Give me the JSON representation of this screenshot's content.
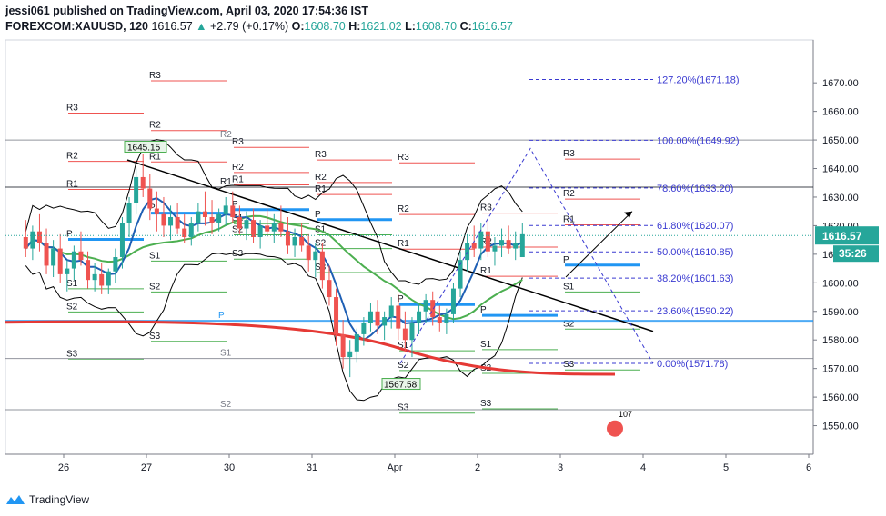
{
  "header": {
    "publisher_line": "jessi061 published on TradingView.com, April 03, 2020 17:54:36 IST",
    "symbol": "FOREXCOM:XAUUSD, 120",
    "last": "1616.57",
    "change_arrow": "▲",
    "change": "+2.79 (+0.17%)",
    "o_label": "O:",
    "o_value": "1608.70",
    "h_label": "H:",
    "h_value": "1621.02",
    "l_label": "L:",
    "l_value": "1608.70",
    "c_label": "C:",
    "c_value": "1616.57"
  },
  "footer": {
    "brand": "TradingView",
    "logo_icon": "tradingview-logo-icon"
  },
  "colors": {
    "up": "#26a69a",
    "down": "#ef5350",
    "pivot": "#2196f3",
    "resistance": "#ef5350",
    "support": "#4caf50",
    "ma_red": "#e53935",
    "ma_green": "#4caf50",
    "ma_blue": "#1e5fb4",
    "band": "#000000",
    "fib": "#3a3ad1",
    "price_tag": "#26a69a"
  },
  "chart_data": {
    "type": "candlestick",
    "symbol": "FOREXCOM:XAUUSD",
    "interval": "120",
    "ylim": [
      1540,
      1685
    ],
    "y_ticks": [
      1550,
      1560,
      1570,
      1580,
      1590,
      1600,
      1610,
      1620,
      1630,
      1640,
      1650,
      1660,
      1670
    ],
    "x_ticks": [
      "26",
      "27",
      "30",
      "31",
      "Apr",
      "2",
      "3",
      "4",
      "5",
      "6"
    ],
    "last_price": "1616.57",
    "countdown": "35:26",
    "annotations": {
      "high_label": "1645.15",
      "low_label": "1567.58",
      "event_badge": "107"
    },
    "fib_levels": [
      {
        "label": "127.20%(1671.18)",
        "price": 1671.18
      },
      {
        "label": "100.00%(1649.92)",
        "price": 1649.92
      },
      {
        "label": "78.60%(1633.20)",
        "price": 1633.2
      },
      {
        "label": "61.80%(1620.07)",
        "price": 1620.07
      },
      {
        "label": "50.00%(1610.85)",
        "price": 1610.85
      },
      {
        "label": "38.20%(1601.63)",
        "price": 1601.63
      },
      {
        "label": "23.60%(1590.22)",
        "price": 1590.22
      },
      {
        "label": "0.00%(1571.78)",
        "price": 1571.78
      }
    ],
    "pivot_sessions": [
      {
        "day": 0,
        "P": 1615.2,
        "R1": 1632.7,
        "R2": 1642.5,
        "R3": 1659.4,
        "S1": 1597.9,
        "S2": 1589.8,
        "S3": 1573.3
      },
      {
        "day": 1,
        "P": 1624.4,
        "R1": 1642.3,
        "R2": 1653.3,
        "R3": 1670.7,
        "S1": 1607.6,
        "S2": 1596.8,
        "S3": 1579.5
      },
      {
        "day": 2,
        "P": 1625.6,
        "R1": 1634.3,
        "R2": 1638.6,
        "R3": 1647.4,
        "S1": 1620.7,
        "S2": 1616.8,
        "S3": 1608.3
      },
      {
        "day": 3,
        "P": 1622.1,
        "R1": 1630.9,
        "R2": 1635.1,
        "R3": 1643.0,
        "S1": 1616.8,
        "S2": 1612.0,
        "S3": 1603.6
      },
      {
        "day": 4,
        "P": 1592.4,
        "R1": 1611.8,
        "R2": 1623.9,
        "R3": 1642.0,
        "S1": 1576.2,
        "S2": 1569.3,
        "S3": 1554.4
      },
      {
        "day": 5,
        "P": 1588.6,
        "R1": 1602.3,
        "R2": 1612.5,
        "R3": 1624.4,
        "S1": 1576.6,
        "S2": 1568.3,
        "S3": 1555.9
      },
      {
        "day": 6,
        "P": 1606.2,
        "R1": 1620.3,
        "R2": 1629.3,
        "R3": 1643.3,
        "S1": 1596.8,
        "S2": 1583.8,
        "S3": 1569.5
      }
    ],
    "weekly_pivot": {
      "P": 1586.7,
      "R1": 1633.5,
      "R2": 1650.0,
      "S1": 1573.5,
      "S2": 1555.6
    },
    "candles": [
      [
        1616,
        1622,
        1609,
        1612
      ],
      [
        1612,
        1620,
        1608,
        1618
      ],
      [
        1618,
        1624,
        1611,
        1614
      ],
      [
        1614,
        1619,
        1603,
        1606
      ],
      [
        1606,
        1615,
        1602,
        1612
      ],
      [
        1612,
        1617,
        1600,
        1603
      ],
      [
        1603,
        1608,
        1597,
        1605
      ],
      [
        1605,
        1613,
        1601,
        1611
      ],
      [
        1611,
        1618,
        1606,
        1608
      ],
      [
        1608,
        1611,
        1598,
        1601
      ],
      [
        1601,
        1607,
        1597,
        1603
      ],
      [
        1603,
        1607,
        1596,
        1599
      ],
      [
        1599,
        1605,
        1596,
        1604
      ],
      [
        1604,
        1612,
        1600,
        1609
      ],
      [
        1609,
        1623,
        1605,
        1621
      ],
      [
        1621,
        1630,
        1616,
        1628
      ],
      [
        1628,
        1640,
        1624,
        1637
      ],
      [
        1637,
        1645,
        1630,
        1633
      ],
      [
        1633,
        1638,
        1622,
        1626
      ],
      [
        1626,
        1632,
        1618,
        1624
      ],
      [
        1624,
        1630,
        1616,
        1620
      ],
      [
        1620,
        1627,
        1615,
        1623
      ],
      [
        1623,
        1628,
        1617,
        1619
      ],
      [
        1619,
        1624,
        1614,
        1616
      ],
      [
        1616,
        1623,
        1613,
        1621
      ],
      [
        1621,
        1628,
        1618,
        1625
      ],
      [
        1625,
        1632,
        1620,
        1623
      ],
      [
        1623,
        1629,
        1617,
        1621
      ],
      [
        1621,
        1626,
        1618,
        1624
      ],
      [
        1624,
        1630,
        1620,
        1627
      ],
      [
        1627,
        1632,
        1621,
        1623
      ],
      [
        1623,
        1627,
        1617,
        1619
      ],
      [
        1619,
        1625,
        1615,
        1622
      ],
      [
        1622,
        1626,
        1614,
        1616
      ],
      [
        1616,
        1622,
        1612,
        1620
      ],
      [
        1620,
        1626,
        1616,
        1618
      ],
      [
        1618,
        1624,
        1614,
        1621
      ],
      [
        1621,
        1627,
        1616,
        1618
      ],
      [
        1618,
        1623,
        1610,
        1613
      ],
      [
        1613,
        1619,
        1609,
        1616
      ],
      [
        1616,
        1621,
        1611,
        1613
      ],
      [
        1613,
        1617,
        1604,
        1608
      ],
      [
        1608,
        1614,
        1602,
        1611
      ],
      [
        1611,
        1614,
        1598,
        1601
      ],
      [
        1601,
        1606,
        1592,
        1595
      ],
      [
        1595,
        1598,
        1578,
        1582
      ],
      [
        1582,
        1587,
        1570,
        1574
      ],
      [
        1574,
        1580,
        1567,
        1576
      ],
      [
        1576,
        1584,
        1572,
        1582
      ],
      [
        1582,
        1588,
        1578,
        1586
      ],
      [
        1586,
        1593,
        1583,
        1590
      ],
      [
        1590,
        1594,
        1582,
        1585
      ],
      [
        1585,
        1590,
        1580,
        1588
      ],
      [
        1588,
        1595,
        1584,
        1592
      ],
      [
        1592,
        1596,
        1580,
        1584
      ],
      [
        1584,
        1590,
        1576,
        1580
      ],
      [
        1580,
        1588,
        1574,
        1586
      ],
      [
        1586,
        1593,
        1582,
        1590
      ],
      [
        1590,
        1596,
        1586,
        1594
      ],
      [
        1594,
        1597,
        1585,
        1588
      ],
      [
        1588,
        1592,
        1583,
        1586
      ],
      [
        1586,
        1591,
        1582,
        1589
      ],
      [
        1589,
        1600,
        1586,
        1598
      ],
      [
        1598,
        1611,
        1595,
        1608
      ],
      [
        1608,
        1617,
        1604,
        1614
      ],
      [
        1614,
        1620,
        1609,
        1612
      ],
      [
        1612,
        1621,
        1608,
        1618
      ],
      [
        1618,
        1622,
        1609,
        1611
      ],
      [
        1611,
        1616,
        1606,
        1613
      ],
      [
        1613,
        1619,
        1609,
        1615
      ],
      [
        1615,
        1620,
        1610,
        1612
      ],
      [
        1612,
        1618,
        1608,
        1614
      ],
      [
        1609,
        1621,
        1609,
        1617
      ]
    ]
  }
}
